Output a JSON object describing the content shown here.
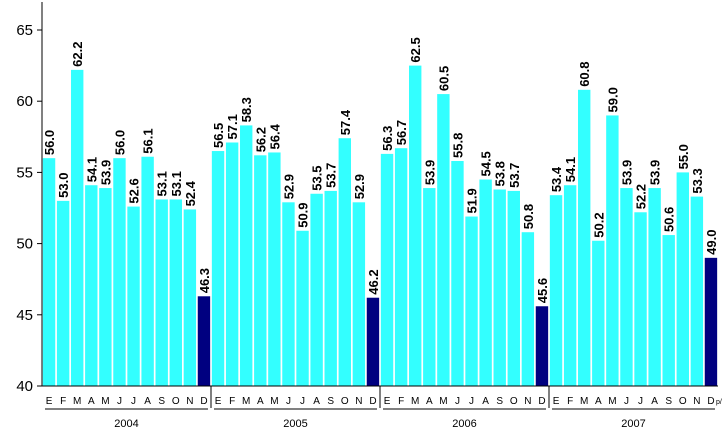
{
  "chart_data": {
    "type": "bar",
    "title": "",
    "xlabel": "",
    "ylabel": "",
    "ylim": [
      40,
      65
    ],
    "yticks": [
      "40",
      "45",
      "50",
      "55",
      "60",
      "65"
    ],
    "grid": false,
    "colors": {
      "regular": "#33ffff",
      "december": "#000080",
      "axis": "#000000"
    },
    "groups": [
      {
        "year": "2004",
        "months": [
          "E",
          "F",
          "M",
          "A",
          "M",
          "J",
          "J",
          "A",
          "S",
          "O",
          "N",
          "D"
        ],
        "values": [
          56.0,
          53.0,
          62.2,
          54.1,
          53.9,
          56.0,
          52.6,
          56.1,
          53.1,
          53.1,
          52.4,
          46.3
        ],
        "labels": [
          "56.0",
          "53.0",
          "62.2",
          "54.1",
          "53.9",
          "56.0",
          "52.6",
          "56.1",
          "53.1",
          "53.1",
          "52.4",
          "46.3"
        ]
      },
      {
        "year": "2005",
        "months": [
          "E",
          "F",
          "M",
          "A",
          "M",
          "J",
          "J",
          "A",
          "S",
          "O",
          "N",
          "D"
        ],
        "values": [
          56.5,
          57.1,
          58.3,
          56.2,
          56.4,
          52.9,
          50.9,
          53.5,
          53.7,
          57.4,
          52.9,
          46.2
        ],
        "labels": [
          "56.5",
          "57.1",
          "58.3",
          "56.2",
          "56.4",
          "52.9",
          "50.9",
          "53.5",
          "53.7",
          "57.4",
          "52.9",
          "46.2"
        ]
      },
      {
        "year": "2006",
        "months": [
          "E",
          "F",
          "M",
          "A",
          "M",
          "J",
          "J",
          "A",
          "S",
          "O",
          "N",
          "D"
        ],
        "values": [
          56.3,
          56.7,
          62.5,
          53.9,
          60.5,
          55.8,
          51.9,
          54.5,
          53.8,
          53.7,
          50.8,
          45.6
        ],
        "labels": [
          "56.3",
          "56.7",
          "62.5",
          "53.9",
          "60.5",
          "55.8",
          "51.9",
          "54.5",
          "53.8",
          "53.7",
          "50.8",
          "45.6"
        ]
      },
      {
        "year": "2007",
        "months": [
          "E",
          "F",
          "M",
          "A",
          "M",
          "J",
          "J",
          "A",
          "S",
          "O",
          "N",
          "D"
        ],
        "last_month_suffix": "p/",
        "values": [
          53.4,
          54.1,
          60.8,
          50.2,
          59.0,
          53.9,
          52.2,
          53.9,
          50.6,
          55.0,
          53.3,
          49.0
        ],
        "labels": [
          "53.4",
          "54.1",
          "60.8",
          "50.2",
          "59.0",
          "53.9",
          "52.2",
          "53.9",
          "50.6",
          "55.0",
          "53.3",
          "49.0"
        ]
      }
    ]
  }
}
